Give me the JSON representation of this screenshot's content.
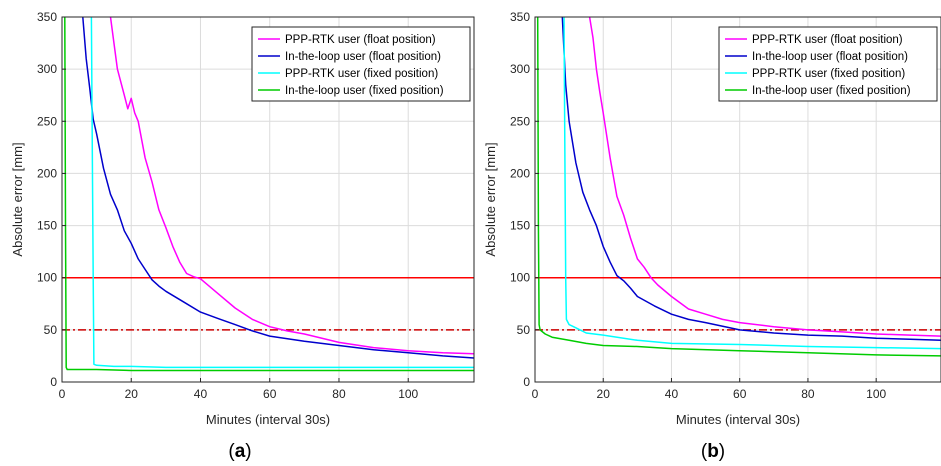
{
  "chart_data": [
    {
      "type": "line",
      "panel_label": {
        "open": "(",
        "letter": "a",
        "close": ")"
      },
      "xlabel": "Minutes (interval 30s)",
      "ylabel": "Absolute error [mm]",
      "xlim": [
        0,
        119
      ],
      "ylim": [
        0,
        350
      ],
      "xticks": [
        0,
        20,
        40,
        60,
        80,
        100
      ],
      "yticks": [
        0,
        50,
        100,
        150,
        200,
        250,
        300,
        350
      ],
      "grid": true,
      "legend_position": "top-right",
      "reference_lines": [
        {
          "y": 100,
          "style": "solid",
          "color": "#ff0000"
        },
        {
          "y": 50,
          "style": "dash-dot",
          "color": "#cc0000"
        }
      ],
      "series": [
        {
          "name": "PPP-RTK user (float position)",
          "color": "#ff00ff",
          "x": [
            14,
            16,
            18,
            19,
            20,
            21,
            22,
            24,
            26,
            28,
            30,
            32,
            34,
            36,
            38,
            40,
            45,
            50,
            55,
            60,
            65,
            70,
            80,
            90,
            100,
            110,
            119
          ],
          "y": [
            350,
            300,
            275,
            262,
            272,
            258,
            250,
            215,
            192,
            165,
            148,
            130,
            115,
            104,
            101,
            99,
            85,
            71,
            60,
            53,
            49,
            46,
            38,
            33,
            30,
            28,
            27
          ]
        },
        {
          "name": "In-the-loop user (float position)",
          "color": "#0000cc",
          "x": [
            6,
            7,
            8,
            9,
            10,
            12,
            14,
            16,
            18,
            20,
            22,
            24,
            26,
            28,
            30,
            35,
            40,
            45,
            50,
            55,
            60,
            70,
            80,
            90,
            100,
            110,
            119
          ],
          "y": [
            350,
            310,
            282,
            252,
            238,
            205,
            180,
            165,
            145,
            133,
            118,
            108,
            98,
            92,
            87,
            77,
            67,
            61,
            55,
            49,
            44,
            39,
            35,
            31,
            28,
            25,
            23
          ]
        },
        {
          "name": "PPP-RTK user (fixed position)",
          "color": "#00ffff",
          "x": [
            8.5,
            8.7,
            9,
            9.2,
            10,
            15,
            20,
            30,
            40,
            60,
            80,
            100,
            119
          ],
          "y": [
            350,
            250,
            100,
            17,
            16,
            15,
            15,
            14,
            14,
            14,
            14,
            14,
            14
          ]
        },
        {
          "name": "In-the-loop user (fixed position)",
          "color": "#00cc00",
          "x": [
            0.8,
            1.0,
            1.2,
            1.5,
            3,
            10,
            20,
            40,
            60,
            80,
            100,
            119
          ],
          "y": [
            350,
            150,
            14,
            12,
            12,
            12,
            11,
            11,
            11,
            11,
            11,
            11
          ]
        }
      ]
    },
    {
      "type": "line",
      "panel_label": {
        "open": "(",
        "letter": "b",
        "close": ")"
      },
      "xlabel": "Minutes (interval 30s)",
      "ylabel": "Absolute error [mm]",
      "xlim": [
        0,
        119
      ],
      "ylim": [
        0,
        350
      ],
      "xticks": [
        0,
        20,
        40,
        60,
        80,
        100
      ],
      "yticks": [
        0,
        50,
        100,
        150,
        200,
        250,
        300,
        350
      ],
      "grid": true,
      "legend_position": "top-right",
      "reference_lines": [
        {
          "y": 100,
          "style": "solid",
          "color": "#ff0000"
        },
        {
          "y": 50,
          "style": "dash-dot",
          "color": "#cc0000"
        }
      ],
      "series": [
        {
          "name": "PPP-RTK user (float position)",
          "color": "#ff00ff",
          "x": [
            16,
            17,
            18,
            19,
            20,
            22,
            24,
            26,
            28,
            30,
            32,
            34,
            36,
            40,
            45,
            50,
            55,
            60,
            70,
            80,
            90,
            100,
            110,
            119
          ],
          "y": [
            350,
            330,
            300,
            278,
            258,
            215,
            178,
            160,
            138,
            118,
            110,
            100,
            93,
            82,
            70,
            65,
            60,
            57,
            53,
            50,
            48,
            46,
            45,
            44
          ]
        },
        {
          "name": "In-the-loop user (float position)",
          "color": "#0000cc",
          "x": [
            8,
            9,
            10,
            12,
            14,
            16,
            18,
            20,
            22,
            24,
            26,
            28,
            30,
            35,
            40,
            45,
            50,
            60,
            70,
            80,
            90,
            100,
            110,
            119
          ],
          "y": [
            350,
            285,
            250,
            210,
            182,
            165,
            150,
            130,
            115,
            102,
            97,
            90,
            82,
            73,
            65,
            60,
            57,
            50,
            47,
            45,
            44,
            42,
            41,
            40
          ]
        },
        {
          "name": "PPP-RTK user (fixed position)",
          "color": "#00ffff",
          "x": [
            8.5,
            8.8,
            9,
            9.2,
            10,
            12,
            15,
            20,
            30,
            40,
            60,
            80,
            100,
            119
          ],
          "y": [
            350,
            200,
            100,
            60,
            55,
            52,
            47,
            45,
            40,
            37,
            36,
            34,
            33,
            32
          ]
        },
        {
          "name": "In-the-loop user (fixed position)",
          "color": "#00cc00",
          "x": [
            0.8,
            1.0,
            1.2,
            1.5,
            3,
            5,
            10,
            15,
            20,
            30,
            40,
            60,
            80,
            100,
            119
          ],
          "y": [
            350,
            150,
            55,
            50,
            46,
            43,
            40,
            37,
            35,
            34,
            32,
            30,
            28,
            26,
            25
          ]
        }
      ]
    }
  ]
}
